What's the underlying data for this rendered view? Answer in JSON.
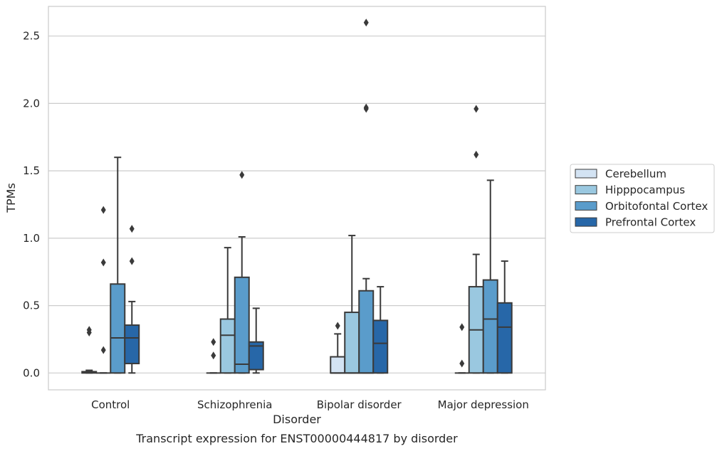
{
  "chart_data": {
    "type": "box",
    "title": "",
    "caption": "Transcript expression for ENST00000444817 by disorder",
    "xlabel": "Disorder",
    "ylabel": "TPMs",
    "ylim": [
      -0.125,
      2.72
    ],
    "yticks": [
      "0.0",
      "0.5",
      "1.0",
      "1.5",
      "2.0",
      "2.5"
    ],
    "ytick_values": [
      0,
      0.5,
      1.0,
      1.5,
      2.0,
      2.5
    ],
    "grid": "horizontal",
    "legend_position": "right",
    "categories": [
      "Control",
      "Schizophrenia",
      "Bipolar disorder",
      "Major depression"
    ],
    "series": [
      {
        "name": "Cerebellum",
        "color": "#d3e3f3",
        "boxes": [
          {
            "whislo": 0.0,
            "q1": 0.0,
            "med": 0.005,
            "q3": 0.01,
            "whishi": 0.02,
            "fliers": [
              0.3,
              0.32
            ]
          },
          {
            "whislo": 0.0,
            "q1": 0.0,
            "med": 0.0,
            "q3": 0.0,
            "whishi": 0.0,
            "fliers": [
              0.13,
              0.23
            ]
          },
          {
            "whislo": 0.0,
            "q1": 0.0,
            "med": 0.0,
            "q3": 0.12,
            "whishi": 0.29,
            "fliers": [
              0.35
            ]
          },
          {
            "whislo": 0.0,
            "q1": 0.0,
            "med": 0.0,
            "q3": 0.0,
            "whishi": 0.0,
            "fliers": [
              0.07,
              0.34
            ]
          }
        ]
      },
      {
        "name": "Hipppocampus",
        "color": "#9ac8e0",
        "boxes": [
          {
            "whislo": 0.0,
            "q1": 0.0,
            "med": 0.0,
            "q3": 0.0,
            "whishi": 0.0,
            "fliers": [
              0.17,
              0.82,
              1.21
            ]
          },
          {
            "whislo": 0.0,
            "q1": 0.0,
            "med": 0.28,
            "q3": 0.4,
            "whishi": 0.93,
            "fliers": []
          },
          {
            "whislo": 0.0,
            "q1": 0.0,
            "med": 0.0,
            "q3": 0.45,
            "whishi": 1.02,
            "fliers": []
          },
          {
            "whislo": 0.0,
            "q1": 0.0,
            "med": 0.32,
            "q3": 0.64,
            "whishi": 0.88,
            "fliers": [
              1.62,
              1.96
            ]
          }
        ]
      },
      {
        "name": "Orbitofontal Cortex",
        "color": "#5a9ccb",
        "boxes": [
          {
            "whislo": 0.0,
            "q1": 0.0,
            "med": 0.26,
            "q3": 0.66,
            "whishi": 1.6,
            "fliers": []
          },
          {
            "whislo": 0.0,
            "q1": 0.0,
            "med": 0.065,
            "q3": 0.71,
            "whishi": 1.01,
            "fliers": [
              1.47
            ]
          },
          {
            "whislo": 0.0,
            "q1": 0.0,
            "med": 0.0,
            "q3": 0.61,
            "whishi": 0.7,
            "fliers": [
              1.96,
              1.97,
              2.6
            ]
          },
          {
            "whislo": 0.0,
            "q1": 0.0,
            "med": 0.4,
            "q3": 0.69,
            "whishi": 1.43,
            "fliers": []
          }
        ]
      },
      {
        "name": "Prefrontal Cortex",
        "color": "#2767a8",
        "boxes": [
          {
            "whislo": 0.0,
            "q1": 0.07,
            "med": 0.26,
            "q3": 0.355,
            "whishi": 0.53,
            "fliers": [
              0.83,
              1.07
            ]
          },
          {
            "whislo": 0.0,
            "q1": 0.025,
            "med": 0.2,
            "q3": 0.23,
            "whishi": 0.48,
            "fliers": []
          },
          {
            "whislo": 0.0,
            "q1": 0.0,
            "med": 0.22,
            "q3": 0.39,
            "whishi": 0.64,
            "fliers": []
          },
          {
            "whislo": 0.0,
            "q1": 0.0,
            "med": 0.34,
            "q3": 0.52,
            "whishi": 0.83,
            "fliers": []
          }
        ]
      }
    ]
  }
}
